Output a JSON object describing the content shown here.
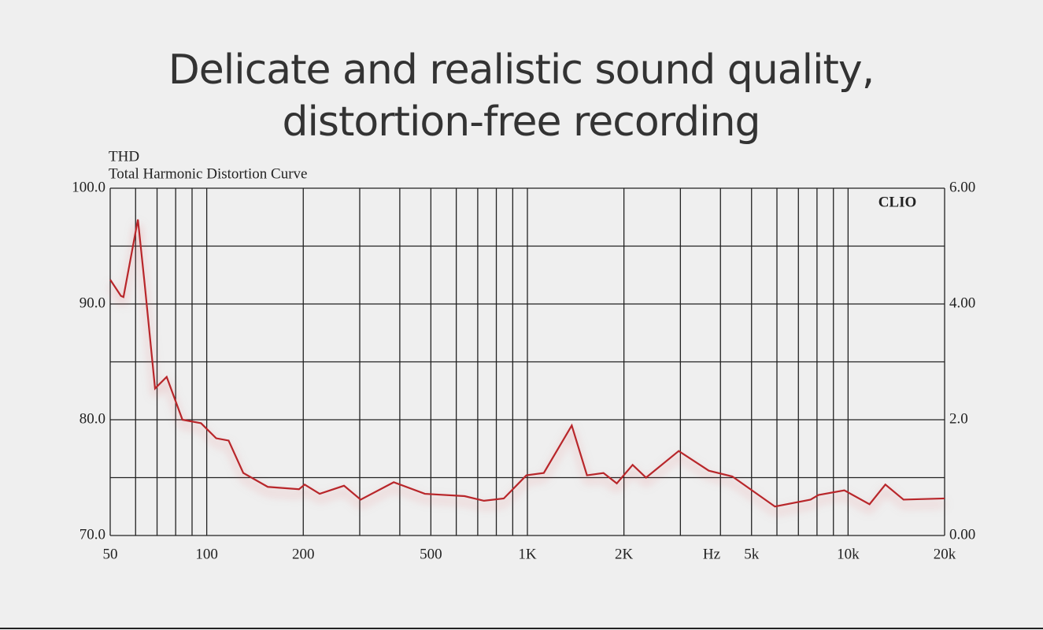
{
  "headline": [
    "Delicate and realistic sound quality,",
    "distortion-free recording"
  ],
  "chart_data": {
    "type": "line",
    "title": "THD",
    "subtitle": "Total Harmonic Distortion Curve",
    "annotation": "CLIO",
    "x_label": "Hz",
    "xscale": "log",
    "xlim": [
      50,
      20000
    ],
    "xticks": [
      50,
      100,
      200,
      500,
      {
        "value": 1000,
        "label": "1K"
      },
      {
        "value": 2000,
        "label": "2K"
      },
      {
        "value": 5000,
        "label": "5k"
      },
      {
        "value": 10000,
        "label": "10k"
      },
      {
        "value": 20000,
        "label": "20k"
      }
    ],
    "xgrid": [
      50,
      60,
      70,
      80,
      90,
      100,
      200,
      300,
      400,
      500,
      600,
      700,
      800,
      900,
      1000,
      2000,
      3000,
      4000,
      5000,
      6000,
      7000,
      8000,
      9000,
      10000,
      20000
    ],
    "ylim": [
      70,
      100
    ],
    "yticks": [
      {
        "value": 70,
        "label": "70.0"
      },
      {
        "value": 80,
        "label": "80.0"
      },
      {
        "value": 90,
        "label": "90.0"
      },
      {
        "value": 100,
        "label": "100.0"
      }
    ],
    "ygrid": [
      70,
      75,
      80,
      85,
      90,
      95,
      100
    ],
    "y2lim": [
      0,
      6
    ],
    "y2ticks": [
      {
        "value": 0,
        "label": "0.00"
      },
      {
        "value": 2,
        "label": "2.0"
      },
      {
        "value": 4,
        "label": "4.00"
      },
      {
        "value": 6,
        "label": "6.00"
      }
    ],
    "grid": true,
    "color": "#b8262a",
    "x": [
      50,
      54,
      55,
      61,
      64,
      69,
      75,
      84,
      96,
      107,
      117,
      130,
      155,
      194,
      202,
      225,
      268,
      302,
      383,
      479,
      637,
      732,
      844,
      993,
      1125,
      1375,
      1534,
      1727,
      1900,
      2129,
      2344,
      2964,
      3679,
      4354,
      5915,
      7637,
      8085,
      9737,
      11665,
      13070,
      14890,
      20000
    ],
    "values": [
      92.1,
      90.7,
      90.6,
      97.3,
      91.8,
      82.7,
      83.7,
      80.0,
      79.7,
      78.4,
      78.2,
      75.4,
      74.2,
      74.0,
      74.4,
      73.6,
      74.3,
      73.1,
      74.6,
      73.6,
      73.4,
      73.0,
      73.2,
      75.2,
      75.4,
      79.5,
      75.2,
      75.4,
      74.5,
      76.1,
      75.0,
      77.3,
      75.6,
      75.1,
      72.5,
      73.1,
      73.5,
      73.9,
      72.7,
      74.4,
      73.1,
      73.2
    ]
  }
}
